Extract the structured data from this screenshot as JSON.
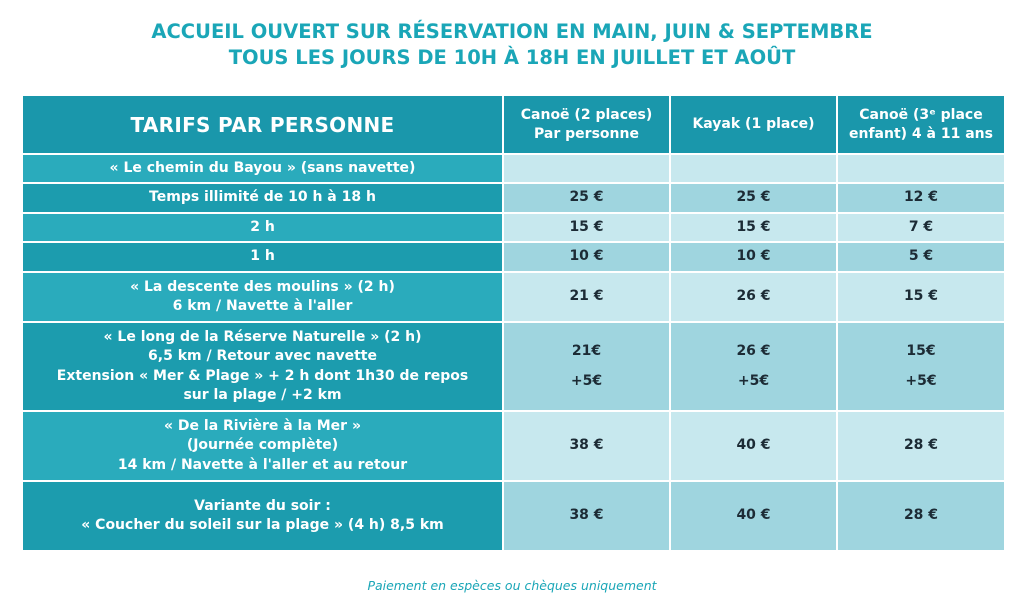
{
  "header": {
    "line1": "ACCUEIL OUVERT SUR RÉSERVATION EN MAIN, JUIN & SEPTEMBRE",
    "line2": "TOUS LES JOURS DE 10H À 18H EN JUILLET ET AOÛT"
  },
  "table": {
    "corner_title": "TARIFS PAR PERSONNE",
    "columns": [
      {
        "line1": "Canoë (2 places)",
        "line2": "Par personne"
      },
      {
        "line1": "Kayak (1 place)",
        "line2": ""
      },
      {
        "line1": "Canoë (3ᵉ place",
        "line2": "enfant) 4 à 11 ans"
      }
    ],
    "rows": [
      {
        "label": [
          "« Le chemin du Bayou » (sans navette)"
        ],
        "prices": [
          "",
          "",
          ""
        ]
      },
      {
        "label": [
          "Temps illimité de 10 h à 18 h"
        ],
        "prices": [
          "25 €",
          "25 €",
          "12 €"
        ]
      },
      {
        "label": [
          "2 h"
        ],
        "prices": [
          "15 €",
          "15 €",
          "7 €"
        ]
      },
      {
        "label": [
          "1 h"
        ],
        "prices": [
          "10 €",
          "10 €",
          "5 €"
        ]
      },
      {
        "label": [
          "« La descente des moulins » (2 h)",
          "6 km / Navette à l'aller"
        ],
        "prices": [
          "21 €",
          "26 €",
          "15 €"
        ]
      },
      {
        "label": [
          "« Le long de la Réserve Naturelle » (2 h)",
          "6,5 km / Retour avec navette",
          "Extension « Mer & Plage » + 2 h dont 1h30 de repos",
          "sur la plage / +2 km"
        ],
        "prices": [
          "21€",
          "26 €",
          "15€"
        ],
        "prices_extra": [
          "+5€",
          "+5€",
          "+5€"
        ]
      },
      {
        "label": [
          "« De la Rivière à la Mer »",
          "(Journée complète)",
          "14 km / Navette à l'aller et au retour"
        ],
        "prices": [
          "38 €",
          "40 €",
          "28 €"
        ]
      },
      {
        "label": [
          "Variante du soir :",
          "« Coucher du soleil sur la plage » (4 h) 8,5 km"
        ],
        "prices": [
          "38 €",
          "40 €",
          "28 €"
        ]
      }
    ]
  },
  "footer": "Paiement en espèces ou chèques uniquement",
  "colors": {
    "accent_text": "#1aa6b7",
    "header_cell": "#1a97ab",
    "label_light": "#2aabbc",
    "label_dark": "#1c9cae",
    "price_light": "#c7e8ee",
    "price_dark": "#9fd5df"
  }
}
